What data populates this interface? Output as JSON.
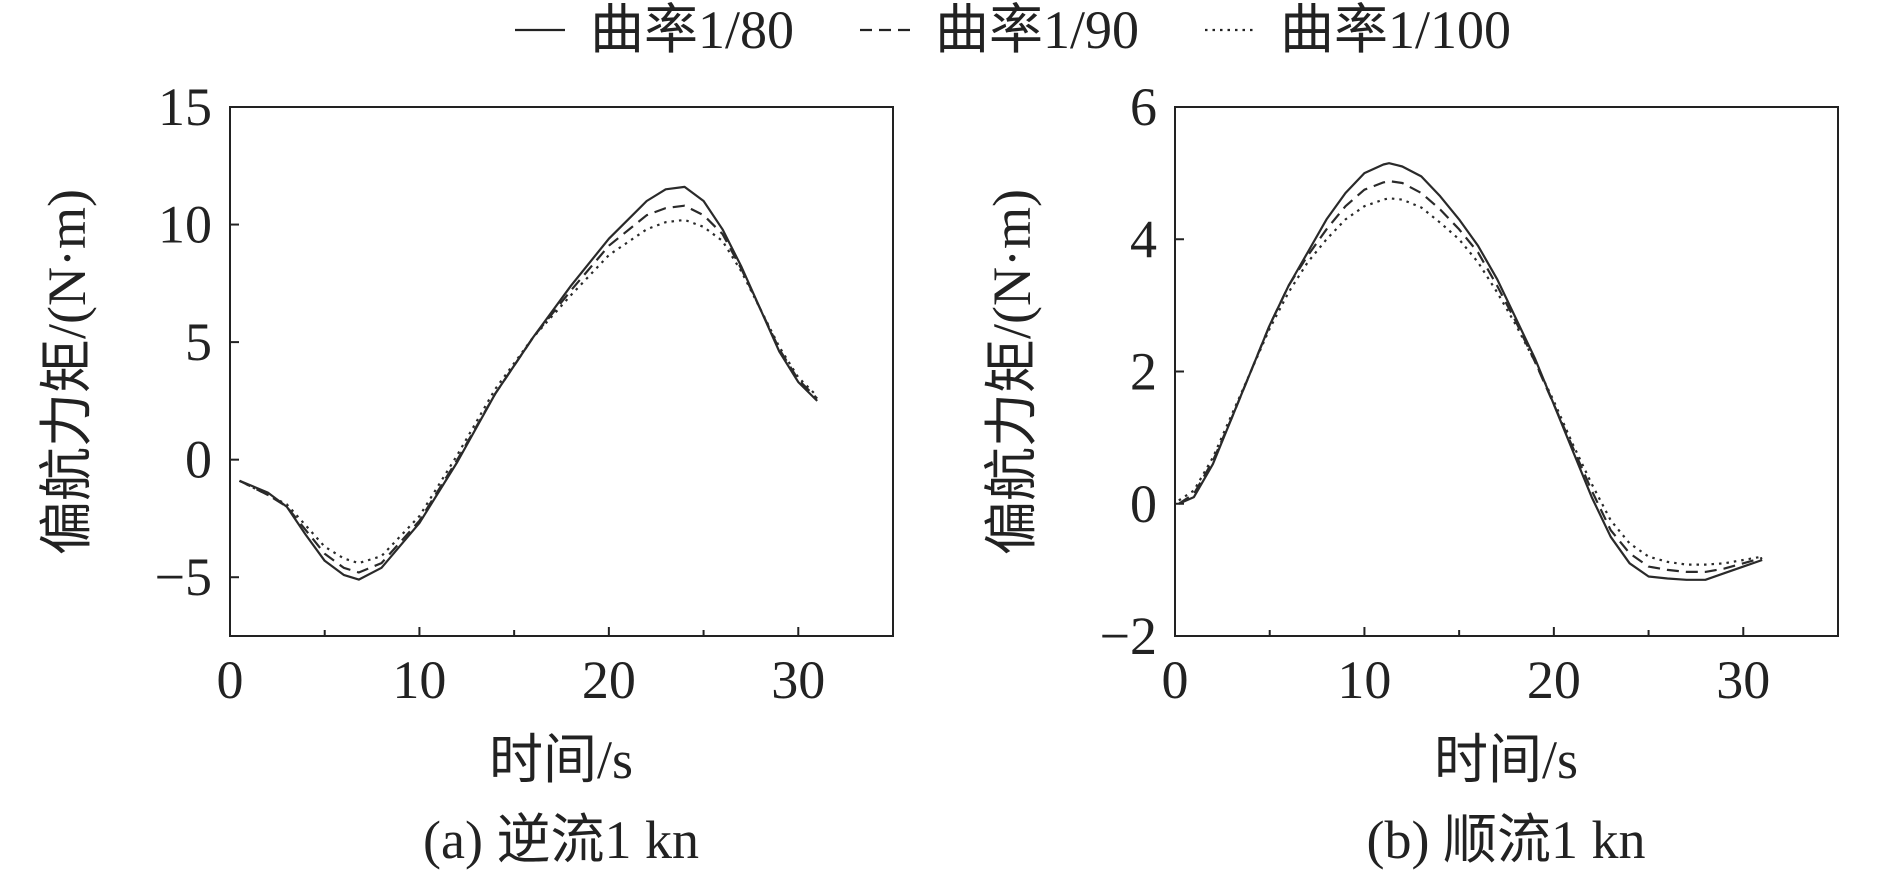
{
  "legend": {
    "items": [
      {
        "label": "曲率1/80",
        "style": "solid"
      },
      {
        "label": "曲率1/90",
        "style": "dashed"
      },
      {
        "label": "曲率1/100",
        "style": "dotted"
      }
    ]
  },
  "chart_data": [
    {
      "type": "line",
      "caption": "(a) 逆流1 kn",
      "xlabel": "时间/s",
      "ylabel": "偏航力矩/(N·m)",
      "xlim": [
        0,
        35
      ],
      "ylim": [
        -7.5,
        15
      ],
      "xticks": [
        0,
        10,
        20,
        30
      ],
      "yticks": [
        -5,
        0,
        5,
        10,
        15
      ],
      "ytick_labels": [
        "−5",
        "0",
        "5",
        "10",
        "15"
      ],
      "grid": false,
      "x": [
        0.5,
        2,
        3,
        4,
        5,
        6,
        6.8,
        8,
        10,
        12,
        14,
        16,
        18,
        20,
        22,
        23,
        24,
        25,
        26,
        27,
        28,
        29,
        30,
        31
      ],
      "series": [
        {
          "name": "曲率1/80",
          "style": "solid",
          "values": [
            -0.9,
            -1.4,
            -2.0,
            -3.2,
            -4.3,
            -4.9,
            -5.1,
            -4.6,
            -2.7,
            -0.1,
            2.8,
            5.2,
            7.4,
            9.4,
            11.0,
            11.5,
            11.6,
            11.0,
            9.8,
            8.2,
            6.4,
            4.6,
            3.3,
            2.5
          ]
        },
        {
          "name": "曲率1/90",
          "style": "dashed",
          "values": [
            -0.9,
            -1.5,
            -2.0,
            -3.0,
            -4.0,
            -4.6,
            -4.8,
            -4.4,
            -2.6,
            0.0,
            2.8,
            5.2,
            7.2,
            9.1,
            10.4,
            10.7,
            10.8,
            10.4,
            9.6,
            8.1,
            6.4,
            4.7,
            3.4,
            2.6
          ]
        },
        {
          "name": "曲率1/100",
          "style": "dotted",
          "values": [
            -0.9,
            -1.5,
            -1.9,
            -2.8,
            -3.7,
            -4.2,
            -4.4,
            -4.1,
            -2.4,
            0.2,
            3.0,
            5.2,
            7.0,
            8.7,
            9.8,
            10.1,
            10.2,
            9.9,
            9.3,
            8.0,
            6.4,
            4.8,
            3.5,
            2.7
          ]
        }
      ]
    },
    {
      "type": "line",
      "caption": "(b) 顺流1 kn",
      "xlabel": "时间/s",
      "ylabel": "偏航力矩/(N·m)",
      "xlim": [
        0,
        35
      ],
      "ylim": [
        -2,
        6
      ],
      "xticks": [
        0,
        10,
        20,
        30
      ],
      "yticks": [
        -2,
        0,
        2,
        4,
        6
      ],
      "ytick_labels": [
        "−2",
        "0",
        "2",
        "4",
        "6"
      ],
      "grid": false,
      "x": [
        0.2,
        1,
        2,
        3,
        4,
        5,
        6,
        7,
        8,
        9,
        10,
        11,
        11.3,
        12,
        13,
        14,
        15,
        16,
        17,
        18,
        19,
        20,
        21,
        22,
        23,
        24,
        25,
        26,
        27,
        28,
        29,
        30,
        31
      ],
      "series": [
        {
          "name": "曲率1/80",
          "style": "solid",
          "values": [
            0.0,
            0.1,
            0.6,
            1.3,
            2.0,
            2.7,
            3.3,
            3.8,
            4.3,
            4.7,
            5.0,
            5.13,
            5.15,
            5.1,
            4.95,
            4.65,
            4.3,
            3.9,
            3.4,
            2.8,
            2.2,
            1.5,
            0.8,
            0.1,
            -0.5,
            -0.9,
            -1.1,
            -1.13,
            -1.15,
            -1.15,
            -1.05,
            -0.95,
            -0.85
          ]
        },
        {
          "name": "曲率1/90",
          "style": "dashed",
          "values": [
            0.0,
            0.15,
            0.65,
            1.3,
            2.0,
            2.7,
            3.3,
            3.75,
            4.15,
            4.5,
            4.75,
            4.86,
            4.88,
            4.85,
            4.7,
            4.45,
            4.15,
            3.8,
            3.3,
            2.75,
            2.15,
            1.5,
            0.85,
            0.2,
            -0.4,
            -0.75,
            -0.95,
            -1.0,
            -1.03,
            -1.03,
            -0.98,
            -0.9,
            -0.82
          ]
        },
        {
          "name": "曲率1/100",
          "style": "dotted",
          "values": [
            0.05,
            0.2,
            0.7,
            1.35,
            2.0,
            2.65,
            3.2,
            3.65,
            4.0,
            4.3,
            4.5,
            4.6,
            4.62,
            4.6,
            4.48,
            4.25,
            4.0,
            3.65,
            3.2,
            2.7,
            2.15,
            1.55,
            0.9,
            0.3,
            -0.25,
            -0.6,
            -0.8,
            -0.88,
            -0.92,
            -0.92,
            -0.9,
            -0.85,
            -0.8
          ]
        }
      ]
    }
  ]
}
